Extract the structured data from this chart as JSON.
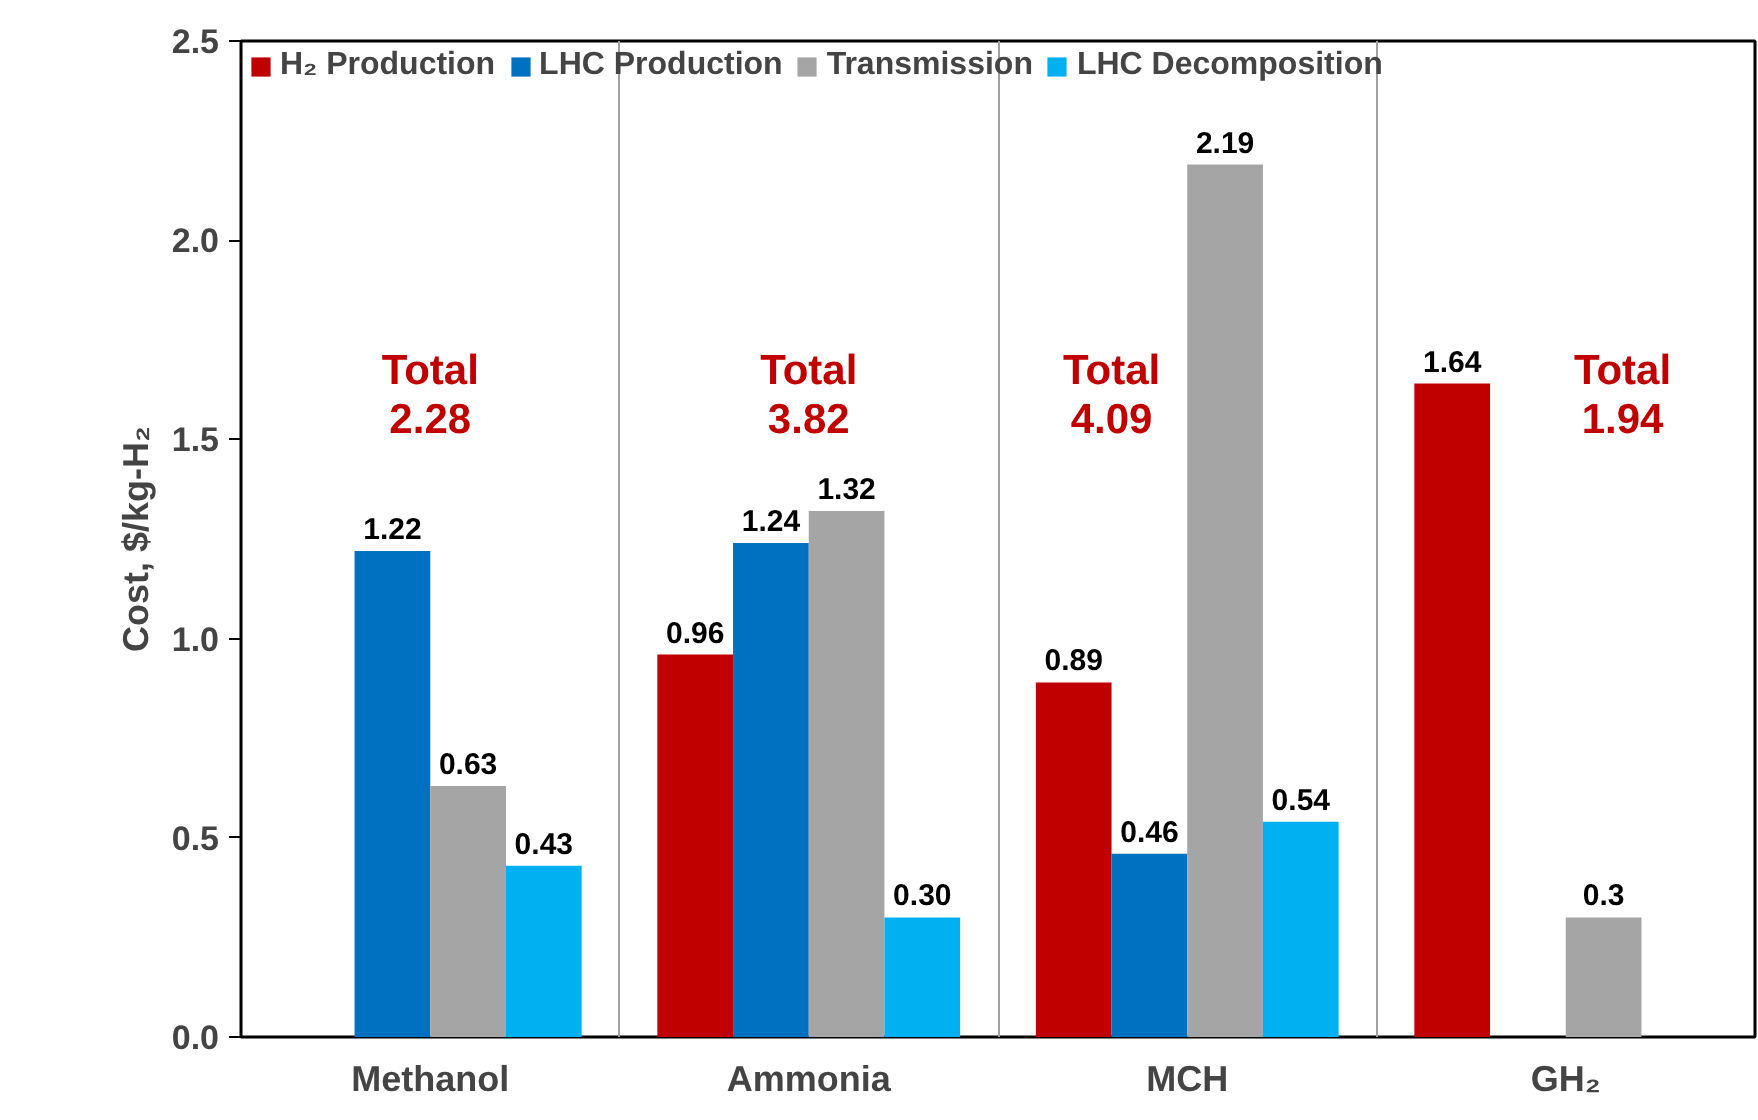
{
  "chart_data": {
    "type": "bar",
    "ylabel": "Cost, $/kg-H₂",
    "categories": [
      "Methanol",
      "Ammonia",
      "MCH",
      "GH₂"
    ],
    "series": [
      {
        "name": "H₂ Production",
        "color": "#c00000",
        "values": [
          null,
          0.96,
          0.89,
          1.64
        ],
        "value_labels": [
          null,
          "0.96",
          "0.89",
          "1.64"
        ]
      },
      {
        "name": "LHC Production",
        "color": "#0070c0",
        "values": [
          1.22,
          1.24,
          0.46,
          null
        ],
        "value_labels": [
          "1.22",
          "1.24",
          "0.46",
          null
        ]
      },
      {
        "name": "Transmission",
        "color": "#a5a5a5",
        "values": [
          0.63,
          1.32,
          2.19,
          0.3
        ],
        "value_labels": [
          "0.63",
          "1.32",
          "2.19",
          "0.3"
        ]
      },
      {
        "name": "LHC Decomposition",
        "color": "#00b0f0",
        "values": [
          0.43,
          0.3,
          0.54,
          null
        ],
        "value_labels": [
          "0.43",
          "0.30",
          "0.54",
          null
        ]
      }
    ],
    "ylim": [
      0,
      2.5
    ],
    "yticks": [
      {
        "value": 0,
        "label": "0.0"
      },
      {
        "value": 0.5,
        "label": "0.5"
      },
      {
        "value": 1,
        "label": "1.0"
      },
      {
        "value": 1.5,
        "label": "1.5"
      },
      {
        "value": 2,
        "label": "2.0"
      },
      {
        "value": 2.5,
        "label": "2.5"
      }
    ],
    "annotations": [
      "Total\n2.28",
      "Total\n3.82",
      "Total\n4.09",
      "Total\n1.94"
    ],
    "grid": "x",
    "legend": "top"
  }
}
